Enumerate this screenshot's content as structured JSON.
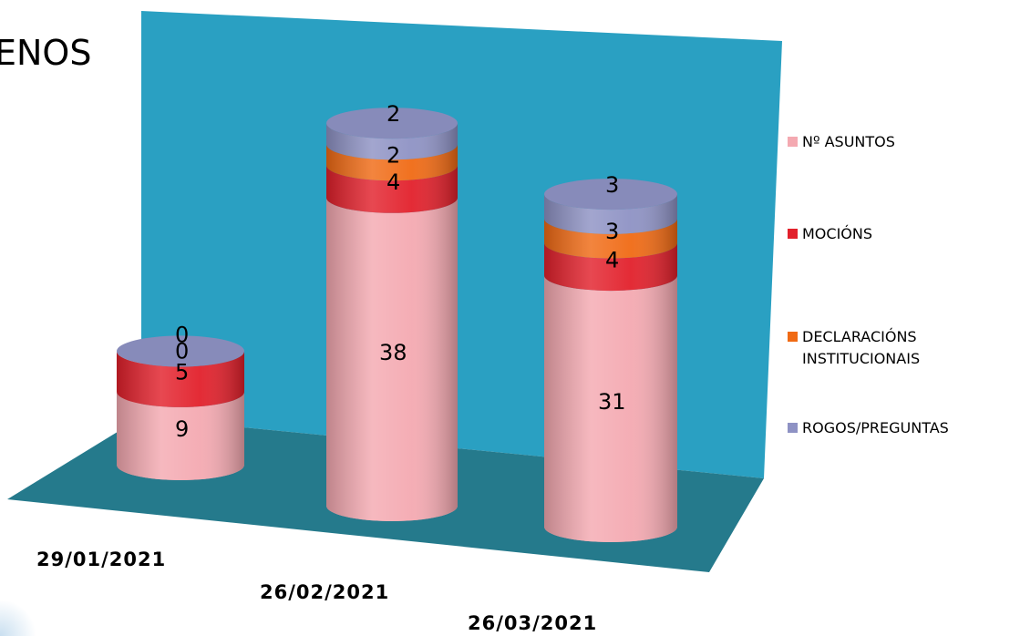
{
  "title": "ENOS",
  "chart_data": {
    "type": "bar",
    "subtype": "stacked-3d-cylinder",
    "categories": [
      "29/01/2021",
      "26/02/2021",
      "26/03/2021"
    ],
    "series": [
      {
        "name": "Nº ASUNTOS",
        "values": [
          9,
          38,
          31
        ],
        "color": "#f4a9b1"
      },
      {
        "name": "MOCIÓNS",
        "values": [
          5,
          4,
          4
        ],
        "color": "#e2202b"
      },
      {
        "name": "DECLARACIÓNS INSTITUCIONAIS",
        "values": [
          0,
          2,
          3
        ],
        "color": "#f06a14"
      },
      {
        "name": "ROGOS/PREGUNTAS",
        "values": [
          0,
          2,
          3
        ],
        "color": "#8e92c4"
      }
    ],
    "data_labels": [
      [
        "9",
        "38",
        "31"
      ],
      [
        "5",
        "4",
        "4"
      ],
      [
        "0",
        "2",
        "3"
      ],
      [
        "0",
        "2",
        "3"
      ]
    ],
    "legend_position": "right",
    "wall_color": "#2aa0c2",
    "floor_color": "#257a8c"
  }
}
